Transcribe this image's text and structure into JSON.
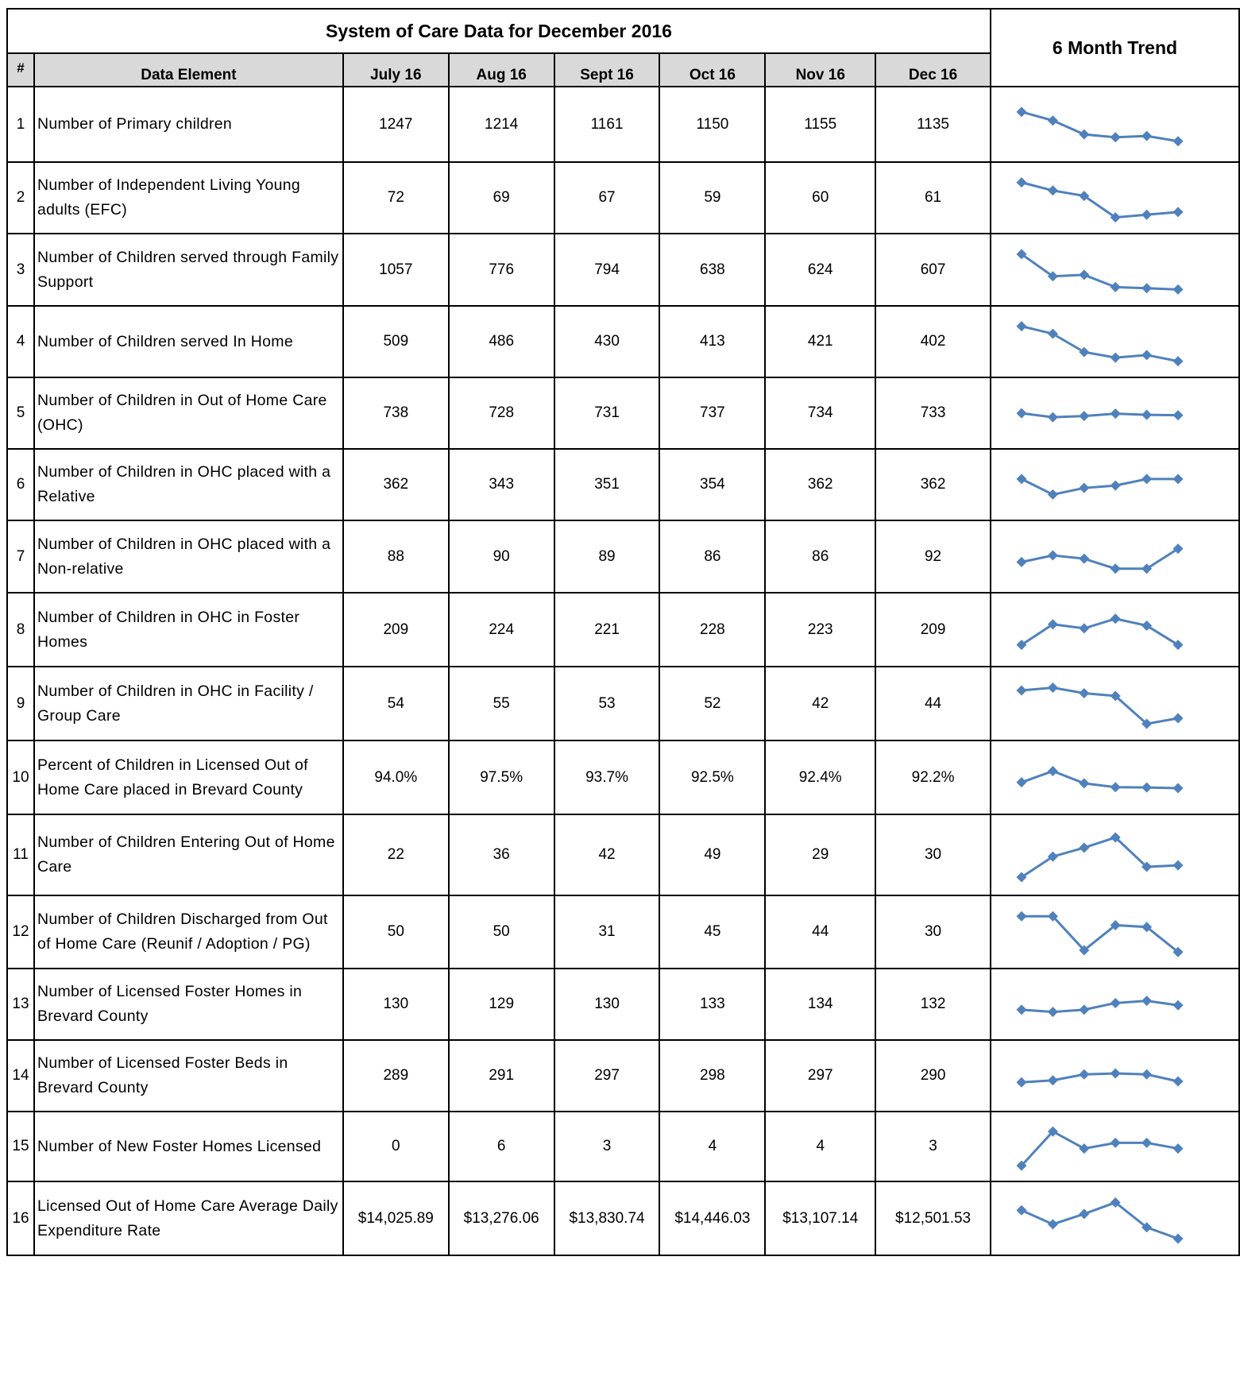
{
  "title": "System of Care Data for December 2016",
  "trend_title": "6 Month Trend",
  "headers": {
    "num": "#",
    "element": "Data Element",
    "months": [
      "July 16",
      "Aug 16",
      "Sept 16",
      "Oct 16",
      "Nov 16",
      "Dec 16"
    ]
  },
  "rows": [
    {
      "num": "1",
      "label": "Number of Primary children",
      "values": [
        "1247",
        "1214",
        "1161",
        "1150",
        "1155",
        "1135"
      ]
    },
    {
      "num": "2",
      "label": "Number of Independent Living Young adults (EFC)",
      "values": [
        "72",
        "69",
        "67",
        "59",
        "60",
        "61"
      ]
    },
    {
      "num": "3",
      "label": "Number of Children served through Family Support",
      "values": [
        "1057",
        "776",
        "794",
        "638",
        "624",
        "607"
      ]
    },
    {
      "num": "4",
      "label": "Number of Children served In Home",
      "values": [
        "509",
        "486",
        "430",
        "413",
        "421",
        "402"
      ]
    },
    {
      "num": "5",
      "label": "Number of Children in Out of Home Care (OHC)",
      "values": [
        "738",
        "728",
        "731",
        "737",
        "734",
        "733"
      ]
    },
    {
      "num": "6",
      "label": "Number of Children in OHC placed with a Relative",
      "values": [
        "362",
        "343",
        "351",
        "354",
        "362",
        "362"
      ]
    },
    {
      "num": "7",
      "label": "Number of Children in OHC placed with a Non-relative",
      "values": [
        "88",
        "90",
        "89",
        "86",
        "86",
        "92"
      ]
    },
    {
      "num": "8",
      "label": "Number of Children in OHC in Foster Homes",
      "values": [
        "209",
        "224",
        "221",
        "228",
        "223",
        "209"
      ]
    },
    {
      "num": "9",
      "label": "Number of Children in OHC in Facility / Group Care",
      "values": [
        "54",
        "55",
        "53",
        "52",
        "42",
        "44"
      ]
    },
    {
      "num": "10",
      "label": "Percent of Children in Licensed Out of Home Care placed in Brevard County",
      "values": [
        "94.0%",
        "97.5%",
        "93.7%",
        "92.5%",
        "92.4%",
        "92.2%"
      ]
    },
    {
      "num": "11",
      "label": "Number of Children Entering Out of Home Care",
      "values": [
        "22",
        "36",
        "42",
        "49",
        "29",
        "30"
      ]
    },
    {
      "num": "12",
      "label": "Number of Children Discharged from Out of Home Care (Reunif / Adoption / PG)",
      "values": [
        "50",
        "50",
        "31",
        "45",
        "44",
        "30"
      ]
    },
    {
      "num": "13",
      "label": "Number of Licensed Foster Homes in Brevard County",
      "values": [
        "130",
        "129",
        "130",
        "133",
        "134",
        "132"
      ]
    },
    {
      "num": "14",
      "label": "Number of Licensed Foster Beds in Brevard County",
      "values": [
        "289",
        "291",
        "297",
        "298",
        "297",
        "290"
      ]
    },
    {
      "num": "15",
      "label": "Number of New Foster Homes Licensed",
      "values": [
        "0",
        "6",
        "3",
        "4",
        "4",
        "3"
      ]
    },
    {
      "num": "16",
      "label": "Licensed Out of Home Care Average Daily Expenditure Rate",
      "values": [
        "$14,025.89",
        "$13,276.06",
        "$13,830.74",
        "$14,446.03",
        "$13,107.14",
        "$12,501.53"
      ]
    }
  ],
  "chart_data": {
    "type": "line",
    "title": "6 Month Trend",
    "categories": [
      "July 16",
      "Aug 16",
      "Sept 16",
      "Oct 16",
      "Nov 16",
      "Dec 16"
    ],
    "marker": "diamond",
    "color": "#4f81bd",
    "series": [
      {
        "values": [
          1247,
          1214,
          1161,
          1150,
          1155,
          1135
        ]
      },
      {
        "values": [
          72,
          69,
          67,
          59,
          60,
          61
        ]
      },
      {
        "values": [
          1057,
          776,
          794,
          638,
          624,
          607
        ]
      },
      {
        "values": [
          509,
          486,
          430,
          413,
          421,
          402
        ]
      },
      {
        "values": [
          738,
          728,
          731,
          737,
          734,
          733
        ]
      },
      {
        "values": [
          362,
          343,
          351,
          354,
          362,
          362
        ]
      },
      {
        "values": [
          88,
          90,
          89,
          86,
          86,
          92
        ]
      },
      {
        "values": [
          209,
          224,
          221,
          228,
          223,
          209
        ]
      },
      {
        "values": [
          54,
          55,
          53,
          52,
          42,
          44
        ]
      },
      {
        "values": [
          94.0,
          97.5,
          93.7,
          92.5,
          92.4,
          92.2
        ]
      },
      {
        "values": [
          22,
          36,
          42,
          49,
          29,
          30
        ]
      },
      {
        "values": [
          50,
          50,
          31,
          45,
          44,
          30
        ]
      },
      {
        "values": [
          130,
          129,
          130,
          133,
          134,
          132
        ]
      },
      {
        "values": [
          289,
          291,
          297,
          298,
          297,
          290
        ]
      },
      {
        "values": [
          0,
          6,
          3,
          4,
          4,
          3
        ]
      },
      {
        "values": [
          14025.89,
          13276.06,
          13830.74,
          14446.03,
          13107.14,
          12501.53
        ]
      }
    ]
  }
}
